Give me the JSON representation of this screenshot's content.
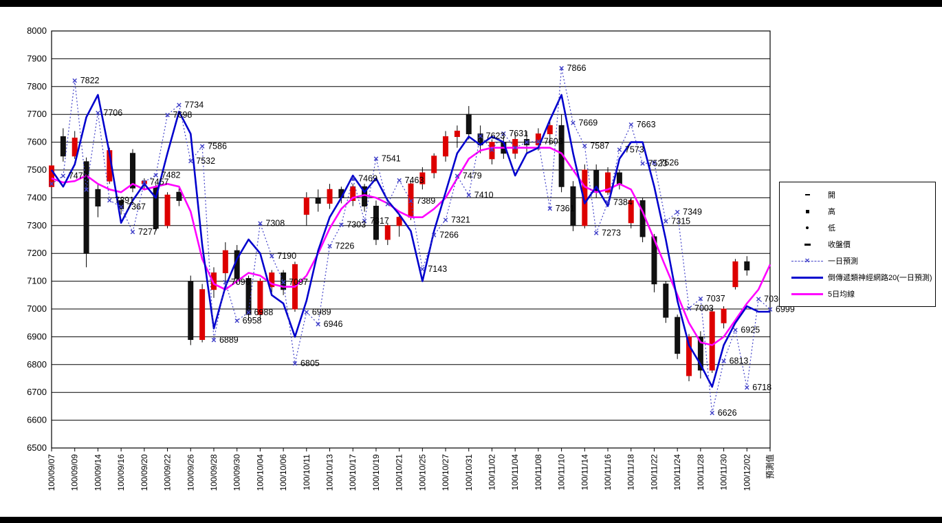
{
  "page": {
    "frame_color": "#000000",
    "background": "#ffffff"
  },
  "chart_data": {
    "type": "candlestick",
    "title": "",
    "grid": true,
    "y_axis": {
      "min": 6500,
      "max": 8000,
      "tick_interval": 100
    },
    "x_labels": [
      "100/09/07",
      "100/09/09",
      "100/09/14",
      "100/09/16",
      "100/09/20",
      "100/09/22",
      "100/09/26",
      "100/09/28",
      "100/09/30",
      "100/10/04",
      "100/10/06",
      "100/10/11",
      "100/10/13",
      "100/10/17",
      "100/10/19",
      "100/10/21",
      "100/10/25",
      "100/10/27",
      "100/10/31",
      "100/11/02",
      "100/11/04",
      "100/11/08",
      "100/11/10",
      "100/11/14",
      "100/11/16",
      "100/11/18",
      "100/11/22",
      "100/11/24",
      "100/11/28",
      "100/11/30",
      "100/12/02",
      "預測值"
    ],
    "x_label_step": 2,
    "colors": {
      "up_candle": "#dd0000",
      "down_candle": "#111111",
      "grid": "#000000",
      "annotation": "#000000"
    },
    "candles": [
      [
        7440,
        7530,
        7415,
        7515
      ],
      [
        7620,
        7650,
        7530,
        7550
      ],
      [
        7550,
        7640,
        7540,
        7615
      ],
      [
        7530,
        7545,
        7150,
        7200
      ],
      [
        7430,
        7450,
        7330,
        7370
      ],
      [
        7460,
        7580,
        7450,
        7570
      ],
      [
        7390,
        7400,
        7340,
        7360
      ],
      [
        7560,
        7575,
        7420,
        7435
      ],
      [
        7450,
        7470,
        7430,
        7460
      ],
      [
        7440,
        7450,
        7280,
        7290
      ],
      [
        7300,
        7420,
        7290,
        7410
      ],
      [
        7420,
        7440,
        7370,
        7390
      ],
      [
        7100,
        7120,
        6870,
        6890
      ],
      [
        6890,
        7090,
        6880,
        7070
      ],
      [
        7070,
        7150,
        7040,
        7130
      ],
      [
        7130,
        7240,
        7100,
        7210
      ],
      [
        7210,
        7230,
        7090,
        7110
      ],
      [
        7110,
        7120,
        6960,
        6980
      ],
      [
        6980,
        7110,
        6960,
        7100
      ],
      [
        7080,
        7140,
        7060,
        7130
      ],
      [
        7130,
        7140,
        7050,
        7070
      ],
      [
        7000,
        7170,
        6990,
        7160
      ],
      [
        7340,
        7420,
        7300,
        7400
      ],
      [
        7400,
        7430,
        7350,
        7380
      ],
      [
        7380,
        7450,
        7360,
        7430
      ],
      [
        7430,
        7440,
        7380,
        7400
      ],
      [
        7390,
        7450,
        7370,
        7440
      ],
      [
        7440,
        7450,
        7350,
        7370
      ],
      [
        7370,
        7390,
        7230,
        7250
      ],
      [
        7250,
        7310,
        7230,
        7300
      ],
      [
        7300,
        7340,
        7260,
        7330
      ],
      [
        7330,
        7460,
        7320,
        7450
      ],
      [
        7450,
        7510,
        7430,
        7490
      ],
      [
        7490,
        7560,
        7470,
        7550
      ],
      [
        7550,
        7640,
        7530,
        7620
      ],
      [
        7620,
        7660,
        7580,
        7640
      ],
      [
        7700,
        7730,
        7610,
        7630
      ],
      [
        7630,
        7660,
        7560,
        7590
      ],
      [
        7540,
        7610,
        7520,
        7600
      ],
      [
        7600,
        7620,
        7540,
        7560
      ],
      [
        7560,
        7630,
        7540,
        7610
      ],
      [
        7610,
        7640,
        7560,
        7590
      ],
      [
        7590,
        7650,
        7570,
        7630
      ],
      [
        7630,
        7680,
        7590,
        7660
      ],
      [
        7660,
        7700,
        7420,
        7440
      ],
      [
        7440,
        7460,
        7280,
        7300
      ],
      [
        7300,
        7520,
        7290,
        7500
      ],
      [
        7500,
        7520,
        7400,
        7420
      ],
      [
        7420,
        7510,
        7410,
        7490
      ],
      [
        7490,
        7500,
        7430,
        7450
      ],
      [
        7310,
        7400,
        7290,
        7390
      ],
      [
        7390,
        7400,
        7240,
        7260
      ],
      [
        7260,
        7270,
        7060,
        7090
      ],
      [
        7090,
        7100,
        6950,
        6970
      ],
      [
        6970,
        6980,
        6820,
        6840
      ],
      [
        6760,
        6910,
        6740,
        6900
      ],
      [
        6900,
        6920,
        6750,
        6780
      ],
      [
        6780,
        7000,
        6770,
        6990
      ],
      [
        6950,
        7010,
        6930,
        7000
      ],
      [
        7080,
        7180,
        7070,
        7170
      ],
      [
        7170,
        7190,
        7120,
        7140
      ]
    ],
    "series": [
      {
        "name": "一日預測",
        "style": "dotted-x",
        "color": "#4040c8",
        "values": [
          7450,
          7479,
          7822,
          7430,
          7706,
          7391,
          7367,
          7277,
          7457,
          7482,
          7698,
          7734,
          7532,
          7586,
          6889,
          7096,
          6958,
          6988,
          7308,
          7190,
          7097,
          6805,
          6989,
          6946,
          7226,
          7303,
          7469,
          7317,
          7541,
          7378,
          7463,
          7389,
          7143,
          7266,
          7321,
          7479,
          7410,
          7623,
          7573,
          7631,
          7580,
          7600,
          7603,
          7361,
          7866,
          7669,
          7587,
          7273,
          7384,
          7573,
          7663,
          7523,
          7526,
          7315,
          7349,
          7003,
          7037,
          6626,
          6813,
          6925,
          6718,
          7036,
          6999
        ]
      },
      {
        "name": "倒傳遞類神經網路20(一日預測)",
        "style": "line",
        "color": "#0000cd",
        "values": [
          7500,
          7440,
          7520,
          7690,
          7770,
          7560,
          7310,
          7390,
          7450,
          7400,
          7560,
          7710,
          7630,
          7230,
          6930,
          7080,
          7180,
          7250,
          7200,
          7050,
          7020,
          6900,
          7030,
          7210,
          7330,
          7400,
          7480,
          7420,
          7470,
          7390,
          7340,
          7280,
          7100,
          7280,
          7420,
          7560,
          7620,
          7590,
          7620,
          7600,
          7480,
          7560,
          7580,
          7680,
          7770,
          7560,
          7380,
          7440,
          7370,
          7540,
          7600,
          7600,
          7440,
          7250,
          7030,
          6870,
          6800,
          6720,
          6870,
          6950,
          7010,
          6990,
          6990
        ]
      },
      {
        "name": "5日均線",
        "style": "line",
        "color": "#ff00ff",
        "values": [
          7470,
          7455,
          7460,
          7480,
          7450,
          7430,
          7420,
          7450,
          7430,
          7440,
          7450,
          7440,
          7350,
          7180,
          7090,
          7070,
          7100,
          7130,
          7120,
          7090,
          7080,
          7080,
          7120,
          7200,
          7290,
          7360,
          7400,
          7410,
          7400,
          7380,
          7350,
          7330,
          7330,
          7360,
          7400,
          7470,
          7540,
          7570,
          7580,
          7580,
          7580,
          7580,
          7580,
          7580,
          7560,
          7500,
          7440,
          7420,
          7430,
          7450,
          7430,
          7350,
          7250,
          7150,
          7050,
          6950,
          6880,
          6870,
          6900,
          6960,
          7020,
          7070,
          7160
        ]
      }
    ],
    "annotation_indices": [
      1,
      2,
      4,
      5,
      6,
      7,
      8,
      9,
      10,
      11,
      12,
      13,
      14,
      15,
      16,
      17,
      18,
      19,
      20,
      21,
      22,
      23,
      24,
      25,
      26,
      27,
      28,
      30,
      31,
      32,
      33,
      34,
      35,
      36,
      37,
      39,
      42,
      43,
      44,
      45,
      46,
      47,
      48,
      49,
      50,
      51,
      52,
      53,
      54,
      55,
      56,
      57,
      58,
      59,
      60,
      61,
      62
    ],
    "legend": {
      "items": [
        {
          "label": "開",
          "swatch": "tick"
        },
        {
          "label": "高",
          "swatch": "square"
        },
        {
          "label": "低",
          "swatch": "dot"
        },
        {
          "label": "收盤價",
          "swatch": "dash"
        },
        {
          "label": "一日預測",
          "swatch": "dotted-x",
          "color": "#4040c8"
        },
        {
          "label": "倒傳遞類神經網路20(一日預測)",
          "swatch": "line",
          "color": "#0000cd"
        },
        {
          "label": "5日均線",
          "swatch": "line",
          "color": "#ff00ff"
        }
      ]
    }
  }
}
